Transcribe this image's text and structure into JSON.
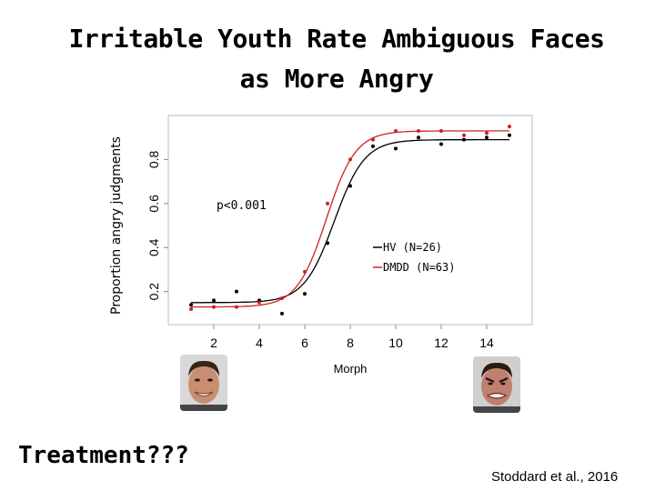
{
  "slide": {
    "title_line1": "Irritable Youth Rate Ambiguous Faces",
    "title_line2": "as More Angry",
    "bottom_left_text": "Treatment???",
    "citation": "Stoddard et al., 2016",
    "faces": [
      {
        "expression": "happy"
      },
      {
        "expression": "angry"
      }
    ]
  },
  "chart_data": {
    "type": "scatter",
    "xlabel": "Morph",
    "ylabel": "Proportion angry judgments",
    "xlim": [
      0,
      16
    ],
    "ylim": [
      0.05,
      1.0
    ],
    "x_ticks": [
      2,
      4,
      6,
      8,
      10,
      12,
      14
    ],
    "y_ticks": [
      0.2,
      0.4,
      0.6,
      0.8
    ],
    "grid": false,
    "legend_position": "center-right",
    "annotation": "p<0.001",
    "series": [
      {
        "name": "HV (N=26)",
        "color": "#000000",
        "x": [
          1,
          2,
          3,
          4,
          5,
          6,
          7,
          8,
          9,
          10,
          11,
          12,
          13,
          14,
          15
        ],
        "y": [
          0.14,
          0.16,
          0.2,
          0.16,
          0.1,
          0.19,
          0.42,
          0.68,
          0.86,
          0.85,
          0.9,
          0.87,
          0.89,
          0.9,
          0.91
        ]
      },
      {
        "name": "DMDD (N=63)",
        "color": "#cc2222",
        "x": [
          1,
          2,
          3,
          4,
          5,
          6,
          7,
          8,
          9,
          10,
          11,
          12,
          13,
          14,
          15
        ],
        "y": [
          0.12,
          0.13,
          0.13,
          0.15,
          0.17,
          0.29,
          0.6,
          0.8,
          0.89,
          0.93,
          0.93,
          0.93,
          0.91,
          0.92,
          0.95
        ]
      }
    ]
  }
}
